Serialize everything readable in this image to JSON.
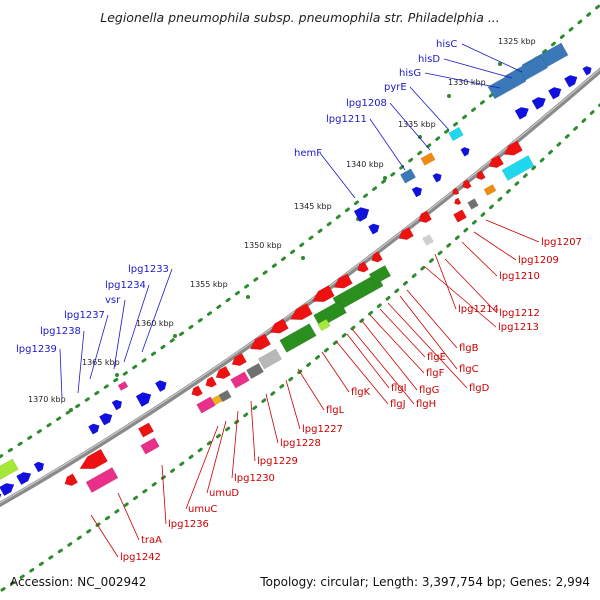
{
  "title": "Legionella pneumophila subsp. pneumophila str. Philadelphia ...",
  "footer": {
    "accession": "Accession: NC_002942",
    "summary": "Topology: circular; Length: 3,397,754 bp; Genes: 2,994"
  },
  "colors": {
    "backbone": "#8a8a8a",
    "dot_track": "#2e8b2e",
    "label_top": "#1a1ac8",
    "label_bot": "#cc0000",
    "gene_blue": "#1010e0",
    "gene_red": "#ee1111",
    "gene_green": "#2a8f1e",
    "gene_steelblue": "#3a78b8",
    "gene_cyan": "#1fd8ee",
    "gene_magenta": "#e8308a",
    "gene_grey": "#707070"
  },
  "ticks": [
    "1325 kbp",
    "1330 kbp",
    "1335 kbp",
    "1340 kbp",
    "1345 kbp",
    "1350 kbp",
    "1355 kbp",
    "1360 kbp",
    "1365 kbp",
    "1370 kbp"
  ],
  "labels_top": [
    "hisC",
    "hisD",
    "hisG",
    "pyrE",
    "lpg1208",
    "lpg1211",
    "hemF",
    "lpg1233",
    "lpg1234",
    "vsr",
    "lpg1237",
    "lpg1238",
    "lpg1239"
  ],
  "labels_bottom": [
    "lpg1207",
    "lpg1209",
    "lpg1210",
    "lpg1212",
    "lpg1213",
    "lpg1214",
    "flgB",
    "flgC",
    "flgD",
    "flgE",
    "flgF",
    "flgG",
    "flgH",
    "flgI",
    "flgJ",
    "flgK",
    "flgL",
    "lpg1227",
    "lpg1228",
    "lpg1229",
    "lpg1230",
    "umuD",
    "umuC",
    "lpg1236",
    "traA",
    "lpg1242"
  ]
}
